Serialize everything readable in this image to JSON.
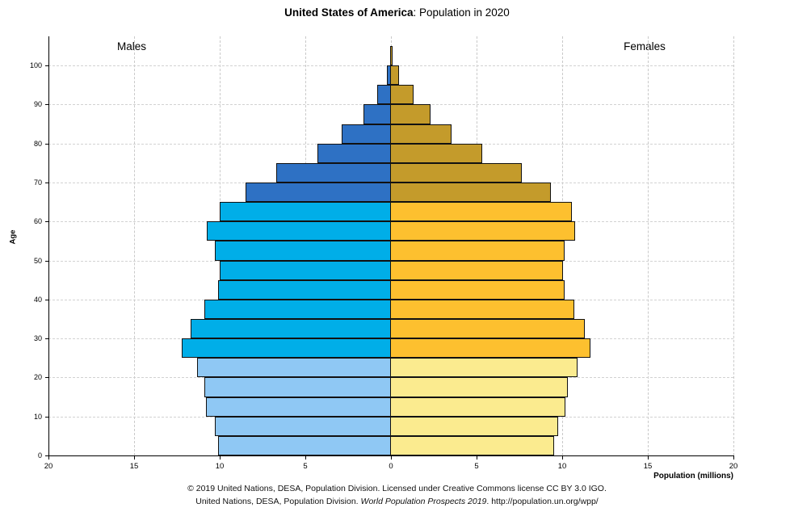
{
  "title": {
    "bold": "United States of America",
    "rest": ": Population in 2020"
  },
  "side_labels": {
    "left": "Males",
    "right": "Females"
  },
  "axes": {
    "y_label": "Age",
    "x_label": "Population (millions)",
    "x_tick_labels": [
      "20",
      "15",
      "10",
      "5",
      "0",
      "5",
      "10",
      "15",
      "20"
    ],
    "age_tick_labels": [
      "0",
      "10",
      "20",
      "30",
      "40",
      "50",
      "60",
      "70",
      "80",
      "90",
      "100"
    ]
  },
  "footer": {
    "line1": "© 2019 United Nations, DESA, Population Division. Licensed under Creative Commons license CC BY 3.0 IGO.",
    "line2_prefix": "United Nations, DESA, Population Division. ",
    "line2_italic": "World Population Prospects 2019",
    "line2_suffix": ". http://population.un.org/wpp/"
  },
  "colors": {
    "male_young": "#8fc8f4",
    "male_adult": "#00aee8",
    "male_senior": "#2e71c4",
    "female_young": "#fbeb8f",
    "female_adult": "#fdc02f",
    "female_senior": "#c49b2b",
    "bar_border": "#111111",
    "grid": "#c9c9c9",
    "axis": "#000000"
  },
  "chart_data": {
    "type": "bar",
    "subtype": "population-pyramid",
    "title": "United States of America: Population in 2020",
    "xlabel": "Population (millions)",
    "ylabel": "Age",
    "xlim_abs": [
      0,
      20
    ],
    "x_tick_step": 5,
    "grid": true,
    "categories": [
      "0-4",
      "5-9",
      "10-14",
      "15-19",
      "20-24",
      "25-29",
      "30-34",
      "35-39",
      "40-44",
      "45-49",
      "50-54",
      "55-59",
      "60-64",
      "65-69",
      "70-74",
      "75-79",
      "80-84",
      "85-89",
      "90-94",
      "95-99",
      "100+"
    ],
    "series": [
      {
        "name": "Males",
        "side": "left",
        "values": [
          10.1,
          10.3,
          10.8,
          10.9,
          11.3,
          12.2,
          11.7,
          10.9,
          10.1,
          10.0,
          10.3,
          10.75,
          10.0,
          8.5,
          6.7,
          4.3,
          2.9,
          1.6,
          0.8,
          0.25,
          0.05
        ]
      },
      {
        "name": "Females",
        "side": "right",
        "values": [
          9.55,
          9.75,
          10.2,
          10.35,
          10.9,
          11.65,
          11.3,
          10.7,
          10.15,
          10.05,
          10.15,
          10.75,
          10.55,
          9.35,
          7.65,
          5.35,
          3.55,
          2.3,
          1.3,
          0.45,
          0.1
        ]
      }
    ],
    "color_bands": [
      {
        "ages": "0-24",
        "male": "#8fc8f4",
        "female": "#fbeb8f"
      },
      {
        "ages": "25-64",
        "male": "#00aee8",
        "female": "#fdc02f"
      },
      {
        "ages": "65+",
        "male": "#2e71c4",
        "female": "#c49b2b"
      }
    ]
  }
}
